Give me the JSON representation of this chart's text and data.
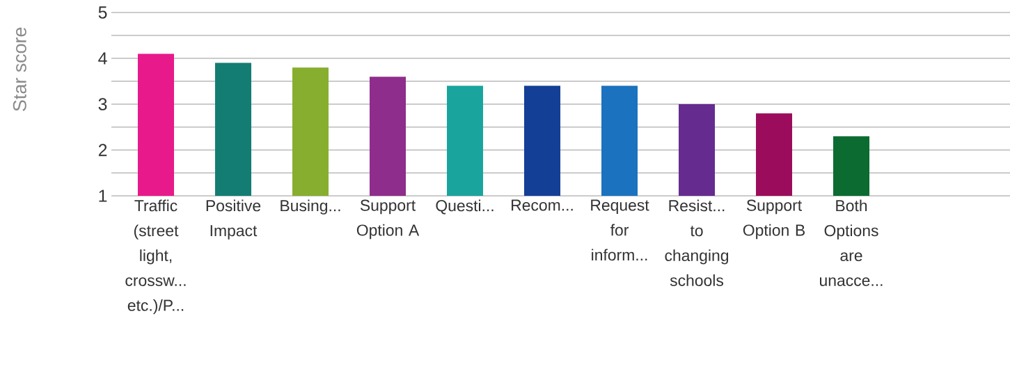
{
  "chart_data": {
    "type": "bar",
    "ylabel": "Star score",
    "categories": [
      "Traffic (street light, crossw... etc.)/P...",
      "Positive Impact",
      "Busing...",
      "Support Option A",
      "Questi...",
      "Recom...",
      "Request for inform...",
      "Resist... to changing schools",
      "Support Option B",
      "Both Options are unacce..."
    ],
    "values": [
      4.1,
      3.9,
      3.8,
      3.6,
      3.4,
      3.4,
      3.4,
      3.0,
      2.8,
      2.3
    ],
    "colors": [
      "#e8198b",
      "#137d74",
      "#87ae2f",
      "#8f2d8c",
      "#19a59d",
      "#143f96",
      "#1b72bf",
      "#652b8f",
      "#9c0c5c",
      "#0b6b31"
    ],
    "ylim": [
      1,
      5
    ],
    "yticks": [
      1,
      {
        "value": 1.5,
        "label": null
      },
      2,
      {
        "value": 2.5,
        "label": null
      },
      3,
      {
        "value": 3.5,
        "label": null
      },
      4,
      {
        "value": 4.5,
        "label": null
      },
      5
    ],
    "grid": "y"
  }
}
